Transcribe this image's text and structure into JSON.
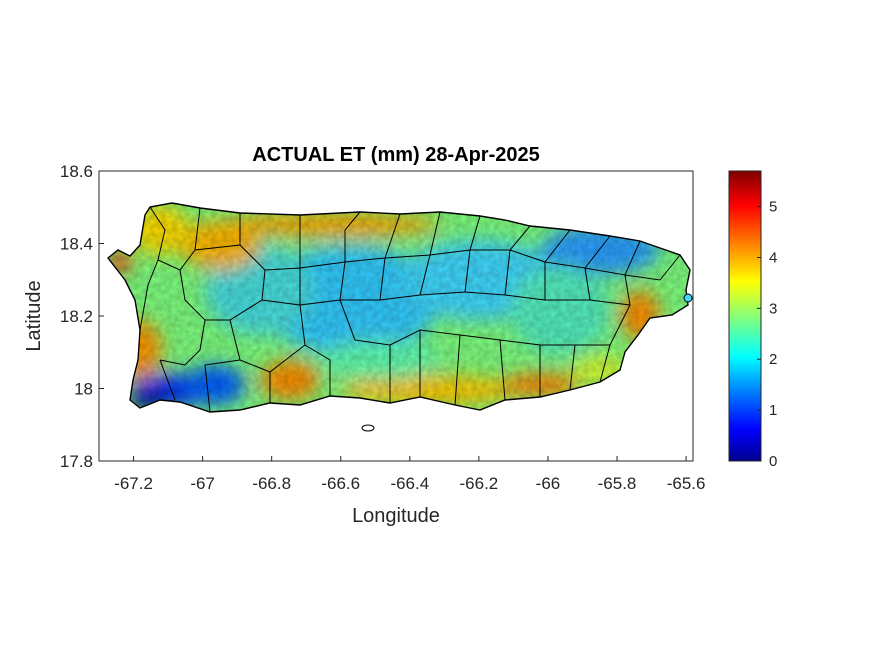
{
  "title": "ACTUAL ET (mm) 28-Apr-2025",
  "map": {
    "region": "Puerto Rico",
    "variable": "ACTUAL ET (mm)",
    "xlabel": "Longitude",
    "ylabel": "Latitude",
    "xlim": [
      -67.3,
      -65.58
    ],
    "ylim": [
      17.8,
      18.6
    ],
    "xticks": [
      "-67.2",
      "-67",
      "-66.8",
      "-66.6",
      "-66.4",
      "-66.2",
      "-66",
      "-65.8",
      "-65.6"
    ],
    "yticks": [
      "18.6",
      "18.4",
      "18.2",
      "18"
    ],
    "ytick_bottom": "17.8",
    "colormap": "jet",
    "outline_color": "#000000"
  },
  "colorbar": {
    "range": [
      0,
      5.7
    ],
    "ticks": [
      "5",
      "4",
      "3",
      "2",
      "1",
      "0"
    ],
    "colors": [
      "#00008f",
      "#0000ff",
      "#0080ff",
      "#00ffff",
      "#80ff80",
      "#ffff00",
      "#ff8000",
      "#ff0000",
      "#800000"
    ]
  }
}
